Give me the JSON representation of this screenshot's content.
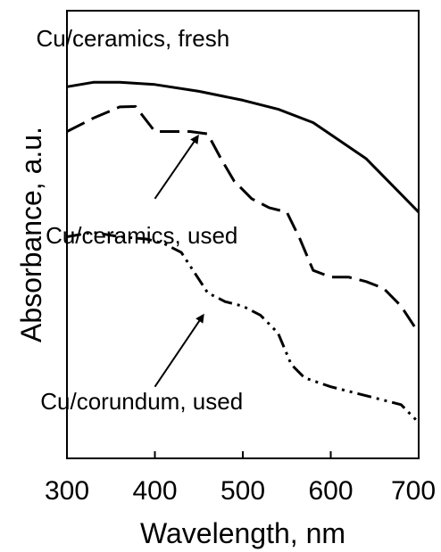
{
  "chart_data": {
    "type": "line",
    "title": "",
    "xlabel": "Wavelength, nm",
    "ylabel": "Absorbance, a.u.",
    "xlim": [
      300,
      700
    ],
    "ylim": [
      0,
      100
    ],
    "x_ticks": [
      300,
      400,
      500,
      600,
      700
    ],
    "x_tick_labels": [
      "300",
      "400",
      "500",
      "600",
      "700"
    ],
    "y_ticks_labeled": false,
    "grid": false,
    "legend": "none",
    "series": [
      {
        "name": "Cu/ceramics, fresh",
        "style": "solid",
        "x": [
          300,
          330,
          360,
          400,
          450,
          500,
          540,
          580,
          610,
          640,
          670,
          700
        ],
        "y": [
          83.0,
          84.0,
          84.0,
          83.5,
          82.0,
          80.0,
          78.0,
          75.0,
          71.0,
          67.0,
          61.0,
          55.0
        ]
      },
      {
        "name": "Cu/ceramics, used",
        "style": "dashed",
        "x": [
          300,
          330,
          360,
          378,
          400,
          420,
          440,
          460,
          475,
          490,
          510,
          530,
          550,
          565,
          580,
          600,
          620,
          640,
          660,
          680,
          700
        ],
        "y": [
          73.0,
          76.0,
          78.5,
          78.6,
          73.0,
          73.0,
          73.0,
          72.5,
          67.0,
          62.0,
          58.0,
          56.0,
          55.0,
          49.0,
          42.0,
          40.5,
          40.5,
          39.5,
          38.0,
          34.0,
          28.0
        ]
      },
      {
        "name": "Cu/corundum, used",
        "style": "dash-dot-dot",
        "x": [
          300,
          330,
          360,
          390,
          410,
          430,
          450,
          460,
          480,
          500,
          520,
          540,
          555,
          570,
          600,
          640,
          660,
          680,
          700
        ],
        "y": [
          49.5,
          50.5,
          49.5,
          49.0,
          48.0,
          46.0,
          40.0,
          37.0,
          35.0,
          34.0,
          32.0,
          28.0,
          21.0,
          18.0,
          16.0,
          14.0,
          13.0,
          12.0,
          8.0
        ]
      }
    ],
    "annotations": [
      {
        "text": "Cu/ceramics, fresh",
        "x": 375,
        "y": 92
      },
      {
        "text": "Cu/ceramics, used",
        "x": 385,
        "y": 48
      },
      {
        "text": "Cu/corundum, used",
        "x": 385,
        "y": 11
      }
    ],
    "arrows": [
      {
        "from": [
          400,
          58
        ],
        "to": [
          449,
          72
        ]
      },
      {
        "from": [
          400,
          16
        ],
        "to": [
          455,
          32
        ]
      }
    ]
  }
}
